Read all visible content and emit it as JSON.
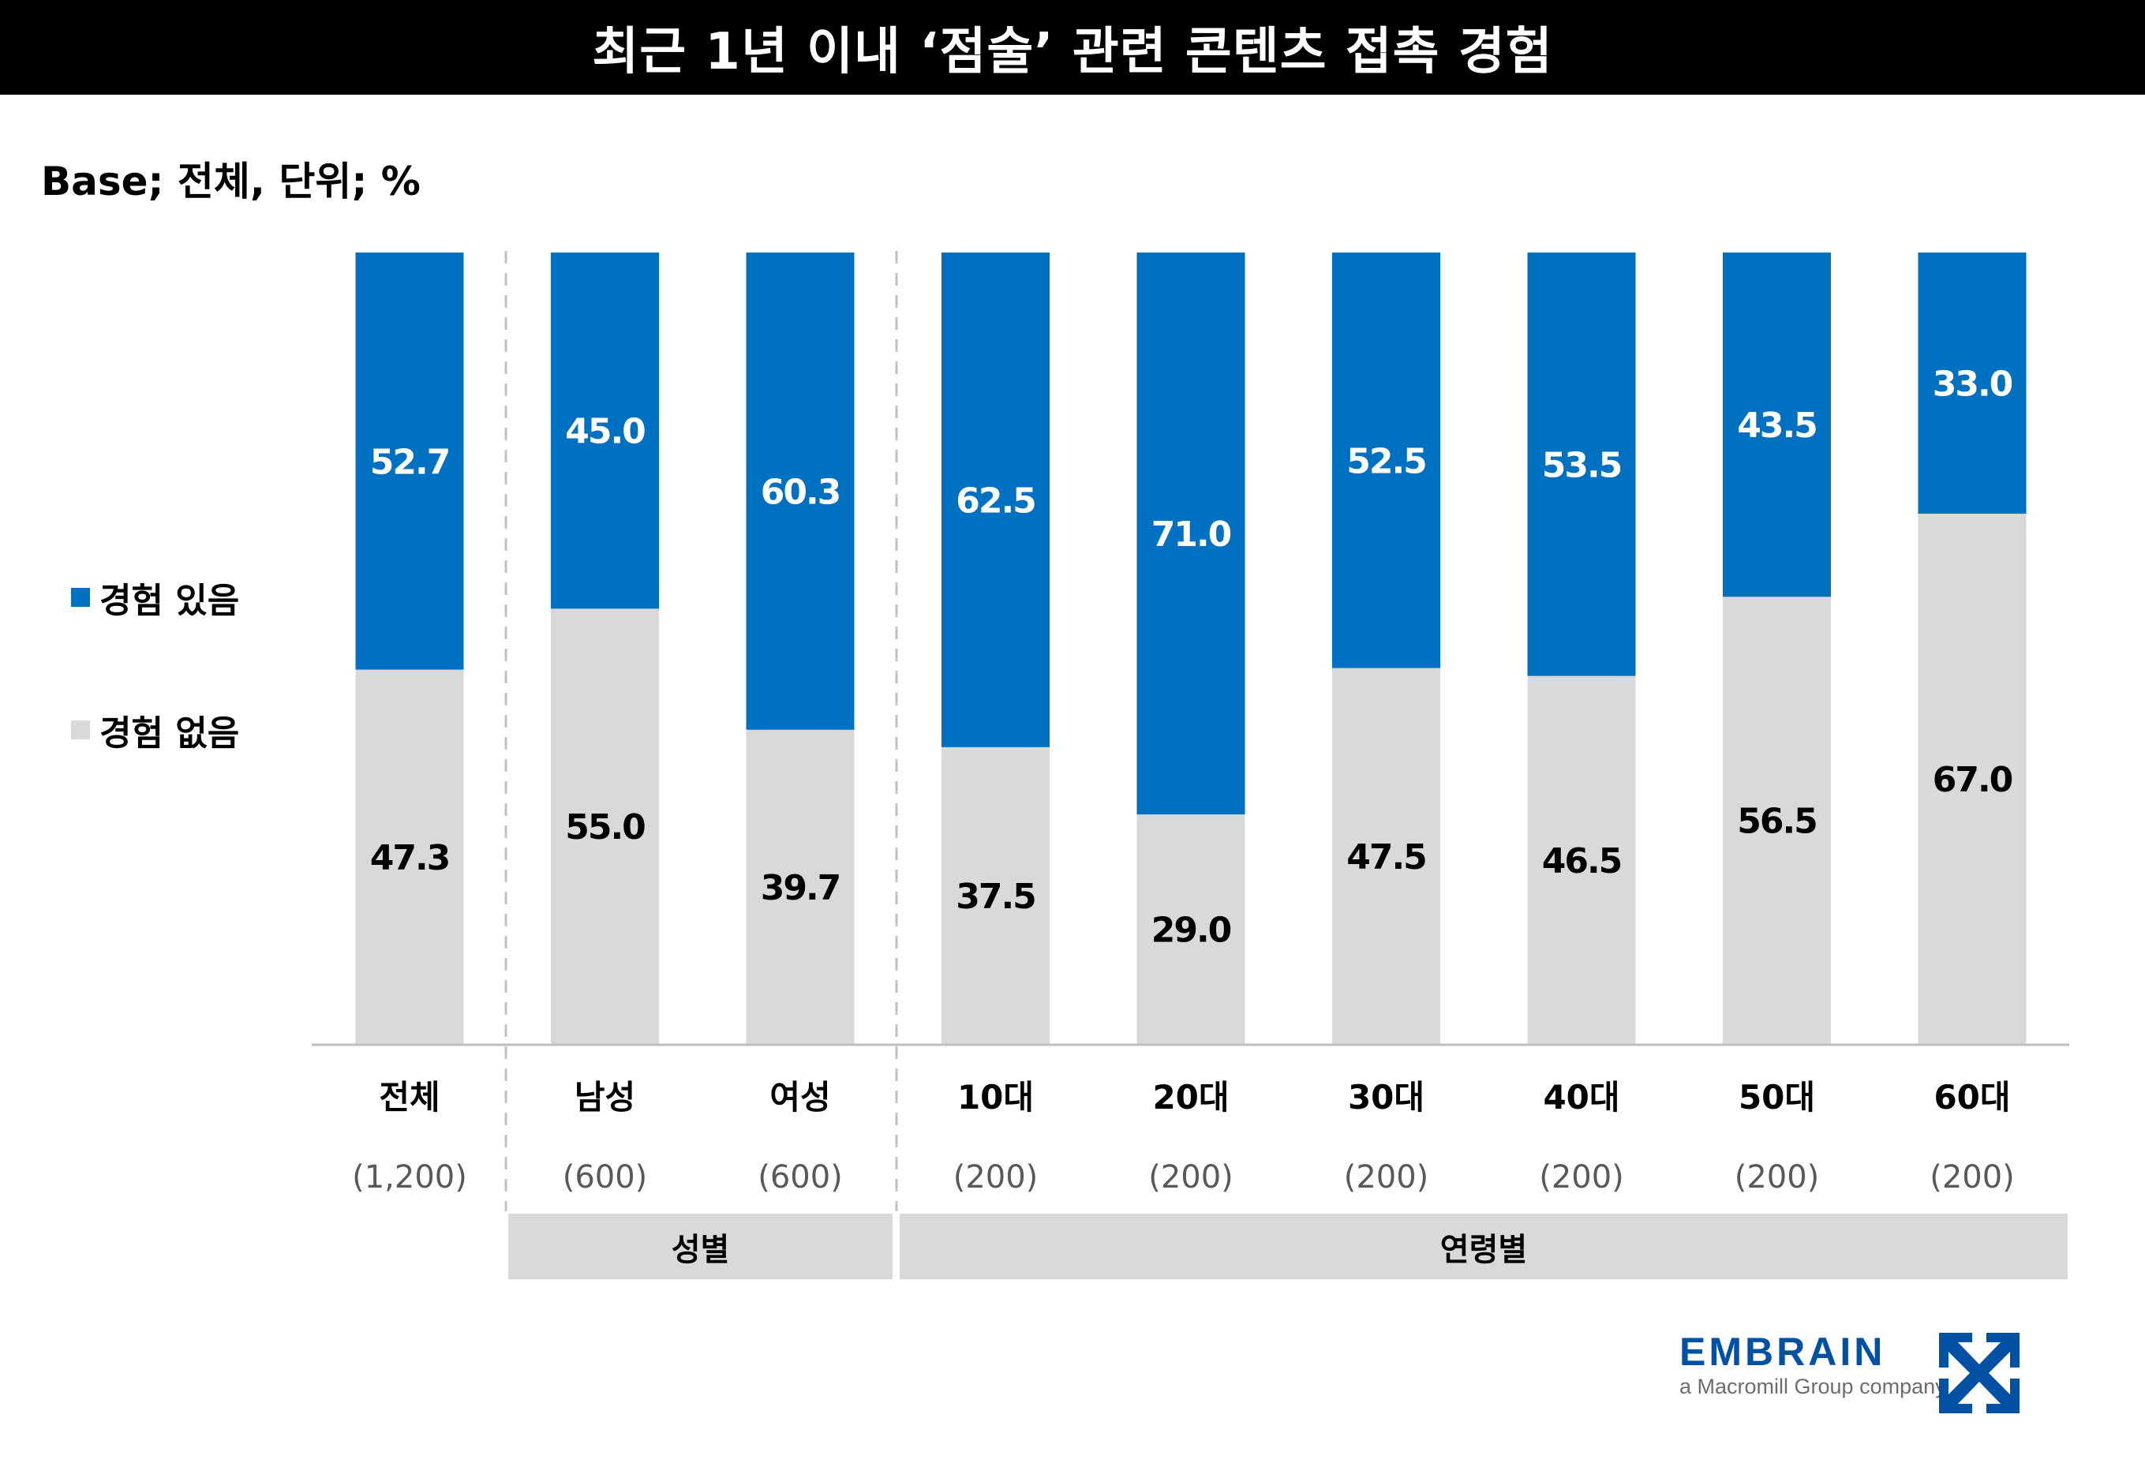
{
  "title": "최근 1년 이내 ‘점술’ 관련 콘텐츠 접촉 경험",
  "base_note": "Base; 전체, 단위; %",
  "legend": [
    {
      "label": "경험 있음",
      "color": "#0070c0"
    },
    {
      "label": "경험 없음",
      "color": "#d9d9d9"
    }
  ],
  "groups": [
    {
      "label": "성별"
    },
    {
      "label": "연령별"
    }
  ],
  "logo": {
    "wordmark": "EMBRAIN",
    "tagline": "a Macromill Group company",
    "color": "#0051a3"
  },
  "chart_data": {
    "type": "bar",
    "stacked": true,
    "percent_stacked": true,
    "title": "최근 1년 이내 ‘점술’ 관련 콘텐츠 접촉 경험",
    "subtitle": "Base; 전체, 단위; %",
    "categories": [
      "전체",
      "남성",
      "여성",
      "10대",
      "20대",
      "30대",
      "40대",
      "50대",
      "60대"
    ],
    "sample_sizes": [
      "(1,200)",
      "(600)",
      "(600)",
      "(200)",
      "(200)",
      "(200)",
      "(200)",
      "(200)",
      "(200)"
    ],
    "category_groups": [
      {
        "label": "성별",
        "categories": [
          "남성",
          "여성"
        ]
      },
      {
        "label": "연령별",
        "categories": [
          "10대",
          "20대",
          "30대",
          "40대",
          "50대",
          "60대"
        ]
      }
    ],
    "series": [
      {
        "name": "경험 없음",
        "color": "#d9d9d9",
        "label_color": "#000000",
        "values": [
          47.3,
          55.0,
          39.7,
          37.5,
          29.0,
          47.5,
          46.5,
          56.5,
          67.0
        ]
      },
      {
        "name": "경험 있음",
        "color": "#0070c0",
        "label_color": "#ffffff",
        "values": [
          52.7,
          45.0,
          60.3,
          62.5,
          71.0,
          52.5,
          53.5,
          43.5,
          33.0
        ]
      }
    ],
    "ylim": [
      0,
      100
    ],
    "xlabel": "",
    "ylabel": "",
    "grid": false,
    "legend_position": "left"
  }
}
